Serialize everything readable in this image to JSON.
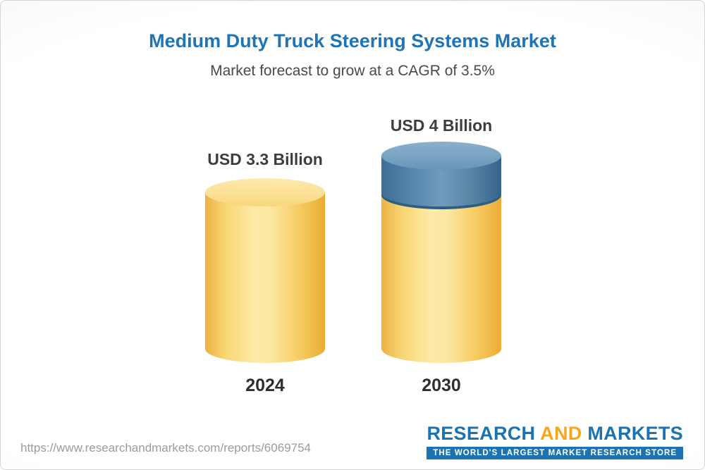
{
  "header": {
    "title": "Medium Duty Truck Steering Systems Market",
    "subtitle": "Market forecast to grow at a CAGR of 3.5%"
  },
  "chart_data": {
    "type": "bar",
    "categories": [
      "2024",
      "2030"
    ],
    "values": [
      3.3,
      4.0
    ],
    "value_labels": [
      "USD 3.3 Billion",
      "USD 4 Billion"
    ],
    "title": "Medium Duty Truck Steering Systems Market",
    "subtitle": "Market forecast to grow at a CAGR of 3.5%",
    "cagr_percent": 3.5,
    "unit": "USD Billion",
    "ylim": [
      0,
      4
    ],
    "legend": "none",
    "grid": false,
    "colors": {
      "base_segment": "#f6cd64",
      "growth_segment": "#5585ac"
    }
  },
  "footer": {
    "url": "https://www.researchandmarkets.com/reports/6069754",
    "logo": {
      "research": "RESEARCH",
      "and": "AND",
      "markets": "MARKETS",
      "tagline": "THE WORLD'S LARGEST MARKET RESEARCH STORE"
    }
  }
}
